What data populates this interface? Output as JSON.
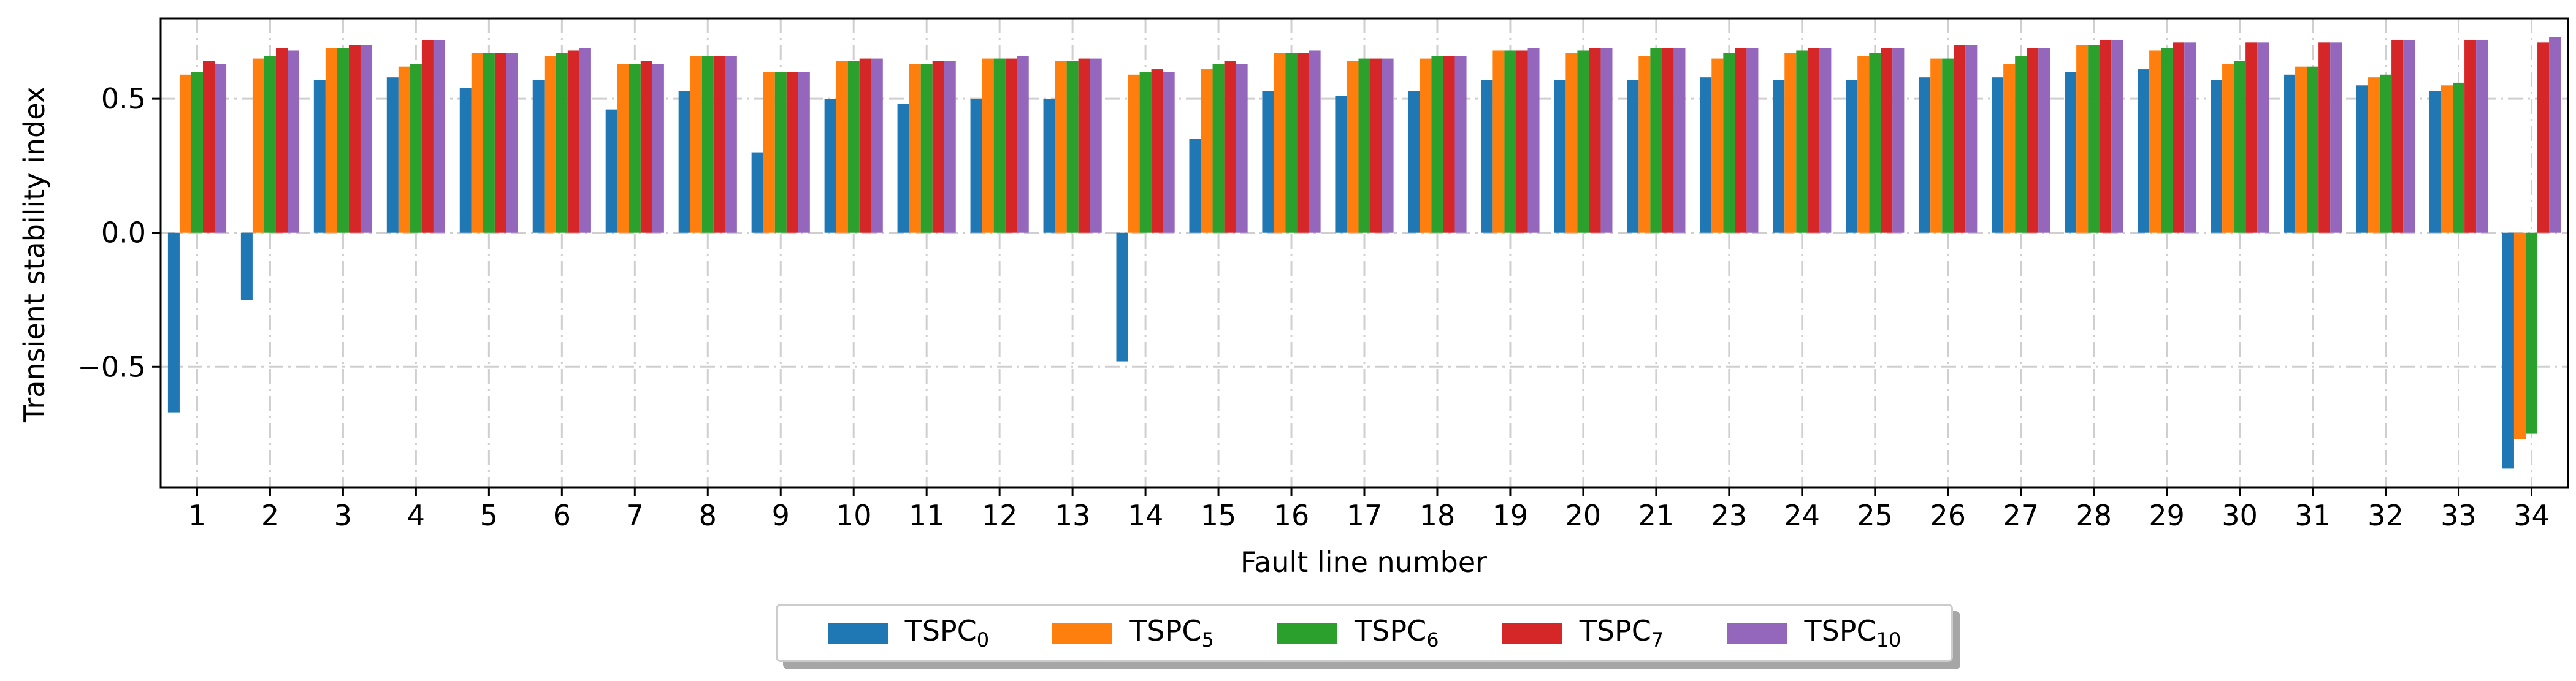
{
  "chart_data": {
    "type": "bar",
    "title": "",
    "xlabel": "Fault line number",
    "ylabel": "Transient stability index",
    "ylim": [
      -0.95,
      0.8
    ],
    "yticks": [
      -0.5,
      0.0,
      0.5
    ],
    "ytick_labels": [
      "−0.5",
      "0.0",
      "0.5"
    ],
    "grid": true,
    "legend_position": "bottom-center",
    "categories": [
      "1",
      "2",
      "3",
      "4",
      "5",
      "6",
      "7",
      "8",
      "9",
      "10",
      "11",
      "12",
      "13",
      "14",
      "15",
      "16",
      "17",
      "18",
      "19",
      "20",
      "21",
      "23",
      "24",
      "25",
      "26",
      "27",
      "28",
      "29",
      "30",
      "31",
      "32",
      "33",
      "34"
    ],
    "series": [
      {
        "name": "TSPC0",
        "base": "TSPC",
        "sub": "0",
        "color": "#1f77b4",
        "values": [
          -0.67,
          -0.25,
          0.57,
          0.58,
          0.54,
          0.57,
          0.46,
          0.53,
          0.3,
          0.5,
          0.48,
          0.5,
          0.5,
          -0.48,
          0.35,
          0.53,
          0.51,
          0.53,
          0.57,
          0.57,
          0.57,
          0.58,
          0.57,
          0.57,
          0.58,
          0.58,
          0.6,
          0.61,
          0.57,
          0.59,
          0.55,
          0.53,
          -0.88
        ]
      },
      {
        "name": "TSPC5",
        "base": "TSPC",
        "sub": "5",
        "color": "#ff7f0e",
        "values": [
          0.59,
          0.65,
          0.69,
          0.62,
          0.67,
          0.66,
          0.63,
          0.66,
          0.6,
          0.64,
          0.63,
          0.65,
          0.64,
          0.59,
          0.61,
          0.67,
          0.64,
          0.65,
          0.68,
          0.67,
          0.66,
          0.65,
          0.67,
          0.66,
          0.65,
          0.63,
          0.7,
          0.68,
          0.63,
          0.62,
          0.58,
          0.55,
          -0.77
        ]
      },
      {
        "name": "TSPC6",
        "base": "TSPC",
        "sub": "6",
        "color": "#2ca02c",
        "values": [
          0.6,
          0.66,
          0.69,
          0.63,
          0.67,
          0.67,
          0.63,
          0.66,
          0.6,
          0.64,
          0.63,
          0.65,
          0.64,
          0.6,
          0.63,
          0.67,
          0.65,
          0.66,
          0.68,
          0.68,
          0.69,
          0.67,
          0.68,
          0.67,
          0.65,
          0.66,
          0.7,
          0.69,
          0.64,
          0.62,
          0.59,
          0.56,
          -0.75
        ]
      },
      {
        "name": "TSPC7",
        "base": "TSPC",
        "sub": "7",
        "color": "#d62728",
        "values": [
          0.64,
          0.69,
          0.7,
          0.72,
          0.67,
          0.68,
          0.64,
          0.66,
          0.6,
          0.65,
          0.64,
          0.65,
          0.65,
          0.61,
          0.64,
          0.67,
          0.65,
          0.66,
          0.68,
          0.69,
          0.69,
          0.69,
          0.69,
          0.69,
          0.7,
          0.69,
          0.72,
          0.71,
          0.71,
          0.71,
          0.72,
          0.72,
          0.71
        ]
      },
      {
        "name": "TSPC10",
        "base": "TSPC",
        "sub": "10",
        "color": "#9467bd",
        "values": [
          0.63,
          0.68,
          0.7,
          0.72,
          0.67,
          0.69,
          0.63,
          0.66,
          0.6,
          0.65,
          0.64,
          0.66,
          0.65,
          0.6,
          0.63,
          0.68,
          0.65,
          0.66,
          0.69,
          0.69,
          0.69,
          0.69,
          0.69,
          0.69,
          0.7,
          0.69,
          0.72,
          0.71,
          0.71,
          0.71,
          0.72,
          0.72,
          0.73
        ]
      }
    ]
  }
}
